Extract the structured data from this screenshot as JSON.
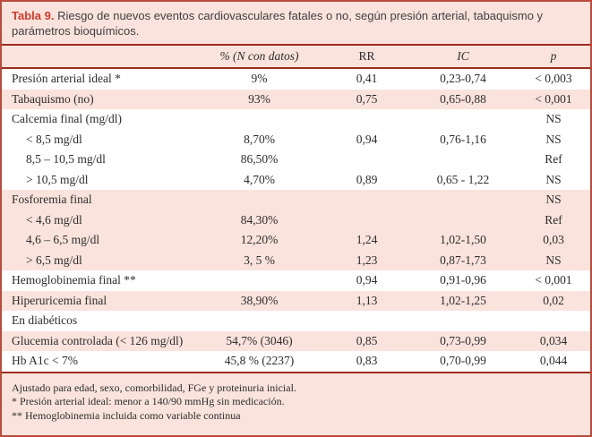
{
  "colors": {
    "outer_border": "#bc4a3c",
    "rule_dark_red": "#9d2c21",
    "row_pink": "#fae3dc",
    "row_white": "#ffffff",
    "title_accent_red": "#d43a2a",
    "body_text": "#2d2d2d"
  },
  "table": {
    "title_label": "Tabla 9.",
    "title_text": " Riesgo de nuevos eventos cardiovasculares fatales o no, según presión arterial, tabaquismo y parámetros bioquímicos.",
    "columns": [
      "% (N con datos)",
      "RR",
      "IC",
      "p"
    ],
    "rows": [
      {
        "label": "Presión arterial ideal *",
        "indent": false,
        "bg": "white",
        "pct": "9%",
        "rr": "0,41",
        "ic": "0,23-0,74",
        "p": "< 0,003"
      },
      {
        "label": "Tabaquismo (no)",
        "indent": false,
        "bg": "pink",
        "pct": "93%",
        "rr": "0,75",
        "ic": "0,65-0,88",
        "p": "< 0,001"
      },
      {
        "label": "Calcemia final (mg/dl)",
        "indent": false,
        "bg": "white",
        "pct": "",
        "rr": "",
        "ic": "",
        "p": "NS"
      },
      {
        "label": "< 8,5 mg/dl",
        "indent": true,
        "bg": "white",
        "pct": "8,70%",
        "rr": "0,94",
        "ic": "0,76-1,16",
        "p": "NS"
      },
      {
        "label": "8,5 – 10,5 mg/dl",
        "indent": true,
        "bg": "white",
        "pct": "86,50%",
        "rr": "",
        "ic": "",
        "p": "Ref"
      },
      {
        "label": "> 10,5 mg/dl",
        "indent": true,
        "bg": "white",
        "pct": "4,70%",
        "rr": "0,89",
        "ic": "0,65 - 1,22",
        "p": "NS"
      },
      {
        "label": "Fosforemia final",
        "indent": false,
        "bg": "pink",
        "pct": "",
        "rr": "",
        "ic": "",
        "p": "NS"
      },
      {
        "label": "< 4,6 mg/dl",
        "indent": true,
        "bg": "pink",
        "pct": "84,30%",
        "rr": "",
        "ic": "",
        "p": "Ref"
      },
      {
        "label": "4,6 – 6,5 mg/dl",
        "indent": true,
        "bg": "pink",
        "pct": "12,20%",
        "rr": "1,24",
        "ic": "1,02-1,50",
        "p": "0,03"
      },
      {
        "label": "> 6,5 mg/dl",
        "indent": true,
        "bg": "pink",
        "pct": "3, 5 %",
        "rr": "1,23",
        "ic": "0,87-1,73",
        "p": "NS"
      },
      {
        "label": "Hemoglobinemia final **",
        "indent": false,
        "bg": "white",
        "pct": "",
        "rr": "0,94",
        "ic": "0,91-0,96",
        "p": "< 0,001"
      },
      {
        "label": "Hiperuricemia final",
        "indent": false,
        "bg": "pink",
        "pct": "38,90%",
        "rr": "1,13",
        "ic": "1,02-1,25",
        "p": "0,02"
      },
      {
        "label": "En diabéticos",
        "indent": false,
        "bg": "white",
        "pct": "",
        "rr": "",
        "ic": "",
        "p": ""
      },
      {
        "label": "Glucemia controlada (< 126 mg/dl)",
        "indent": false,
        "bg": "pink",
        "pct": "54,7% (3046)",
        "rr": "0,85",
        "ic": "0,73-0,99",
        "p": "0,034"
      },
      {
        "label": "Hb A1c < 7%",
        "indent": false,
        "bg": "white",
        "pct": "45,8 % (2237)",
        "rr": "0,83",
        "ic": "0,70-0,99",
        "p": "0,044"
      }
    ],
    "footnotes": [
      "Ajustado para edad, sexo, comorbilidad, FGe y proteinuria inicial.",
      "* Presión arterial ideal: menor a 140/90 mmHg sin medicación.",
      "** Hemoglobinemia incluida como variable continua"
    ]
  }
}
